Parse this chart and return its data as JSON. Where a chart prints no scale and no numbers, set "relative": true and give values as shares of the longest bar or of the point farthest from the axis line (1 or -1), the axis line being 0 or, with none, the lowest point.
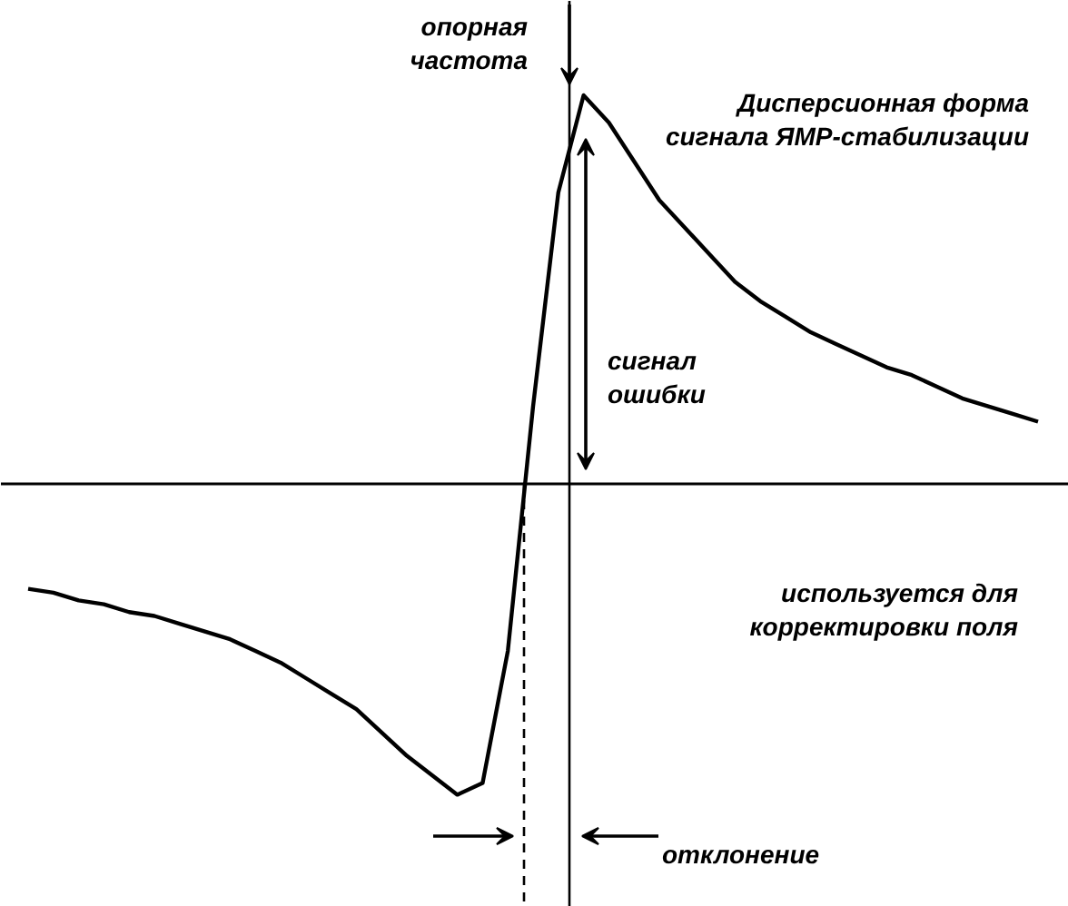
{
  "chart_data": {
    "type": "line",
    "relative": true,
    "categories": [
      null,
      null,
      null,
      null,
      null,
      null,
      null,
      null,
      null,
      null,
      null,
      null,
      null,
      null,
      null,
      null,
      null,
      null,
      null,
      null,
      null,
      null,
      null,
      null,
      null,
      null,
      null,
      null,
      null,
      null,
      null,
      null,
      null,
      null,
      null,
      null,
      null,
      null,
      null,
      null,
      null
    ],
    "series": [
      {
        "color": "#000000",
        "values": [
          -0.27,
          -0.28,
          -0.3,
          -0.31,
          -0.33,
          -0.34,
          -0.36,
          -0.38,
          -0.4,
          -0.43,
          -0.46,
          -0.5,
          -0.54,
          -0.58,
          -0.64,
          -0.7,
          -0.75,
          -0.8,
          -0.77,
          -0.43,
          0.2,
          0.75,
          1.0,
          0.93,
          0.83,
          0.73,
          0.66,
          0.59,
          0.52,
          0.47,
          0.43,
          0.39,
          0.36,
          0.33,
          0.3,
          0.28,
          0.25,
          0.22,
          0.2,
          0.18,
          0.16
        ]
      }
    ],
    "annotations": [
      "опорная\nчастота",
      "Дисперсионная форма\nсигнала ЯМР-стабилизации",
      "сигнал\nошибки",
      "используется для\nкорректировки поля",
      "отклонение"
    ]
  }
}
